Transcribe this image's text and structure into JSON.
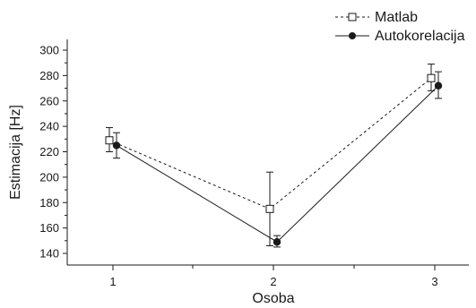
{
  "chart_data": {
    "type": "line",
    "xlabel": "Osoba",
    "ylabel": "Estimacija [Hz]",
    "categories": [
      "1",
      "2",
      "3"
    ],
    "ylim": [
      130,
      310
    ],
    "yticks": [
      140,
      160,
      180,
      200,
      220,
      240,
      260,
      280,
      300
    ],
    "grid": false,
    "legend_position": "top-right",
    "series": [
      {
        "name": "Matlab",
        "line_style": "dashed",
        "marker": "open-square",
        "color": "#1a1a1a",
        "values": [
          229,
          175,
          278
        ],
        "error_low": [
          220,
          146,
          268
        ],
        "error_high": [
          239,
          204,
          289
        ]
      },
      {
        "name": "Autokorelacija",
        "line_style": "solid",
        "marker": "filled-circle",
        "color": "#1a1a1a",
        "values": [
          225,
          149,
          272
        ],
        "error_low": [
          215,
          145,
          262
        ],
        "error_high": [
          235,
          154,
          283
        ]
      }
    ]
  }
}
